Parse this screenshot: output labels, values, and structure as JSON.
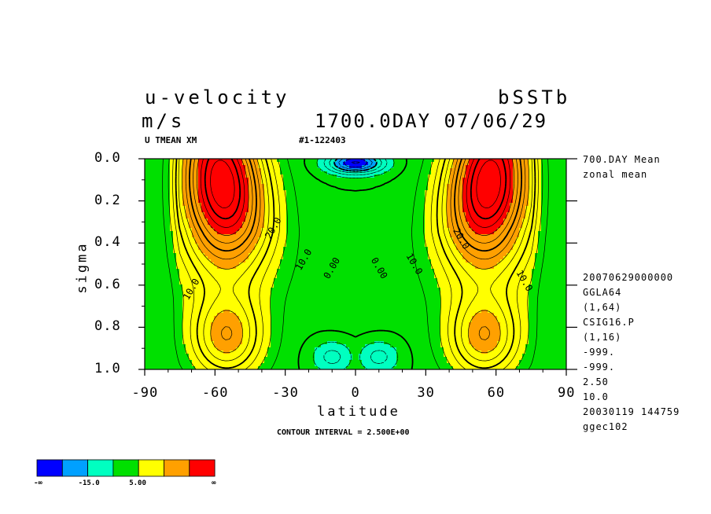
{
  "header": {
    "title": "u-velocity",
    "units": "m/s",
    "experiment": "bSSTb",
    "time": "1700.0DAY 07/06/29",
    "variable": "U TMEAN XM",
    "run_id": "#1-122403"
  },
  "side_info": {
    "lines_top": [
      "700.DAY Mean",
      "zonal mean"
    ],
    "lines_bottom": [
      "20070629000000",
      "GGLA64",
      "(1,64)",
      "CSIG16.P",
      "(1,16)",
      "-999.",
      "-999.",
      "2.50",
      "10.0",
      "20030119 144759",
      "ggec102"
    ]
  },
  "footer": {
    "contour_interval": "CONTOUR INTERVAL = 2.500E+00"
  },
  "colorbar": {
    "colors": [
      "#0000ff",
      "#00a0ff",
      "#00ffc0",
      "#00e000",
      "#ffff00",
      "#ffa000",
      "#ff0000"
    ],
    "labels": [
      "-∞",
      "-15.0",
      "5.00",
      "∞"
    ]
  },
  "chart_data": {
    "type": "contour",
    "title": "u-velocity",
    "xlabel": "latitude",
    "ylabel": "sigma",
    "x_ticks": [
      -90,
      -60,
      -30,
      0,
      30,
      60,
      90
    ],
    "x_tick_labels": [
      "-90",
      "-60",
      "-30",
      "0",
      "30",
      "60",
      "90"
    ],
    "y_ticks": [
      0.0,
      0.2,
      0.4,
      0.6,
      0.8,
      1.0
    ],
    "y_tick_labels": [
      "0.0",
      "0.2",
      "0.4",
      "0.6",
      "0.8",
      "1.0"
    ],
    "xlim": [
      -90,
      90
    ],
    "ylim": [
      0.0,
      1.0
    ],
    "contour_interval": 2.5,
    "contour_labels": [
      {
        "text": "20.0",
        "lat": -35,
        "sigma": 0.33
      },
      {
        "text": "10.0",
        "lat": -22,
        "sigma": 0.48
      },
      {
        "text": "0.00",
        "lat": -10,
        "sigma": 0.52
      },
      {
        "text": "10.0",
        "lat": -70,
        "sigma": 0.62
      },
      {
        "text": "0.00",
        "lat": 10,
        "sigma": 0.52
      },
      {
        "text": "10.0",
        "lat": 25,
        "sigma": 0.5
      },
      {
        "text": "20.0",
        "lat": 45,
        "sigma": 0.38
      },
      {
        "text": "10.0",
        "lat": 72,
        "sigma": 0.58
      }
    ],
    "jets": [
      {
        "lat": -55,
        "sigma": 0.2,
        "max_u": 35
      },
      {
        "lat": 55,
        "sigma": 0.2,
        "max_u": 35
      }
    ],
    "easterlies": [
      {
        "lat": -8,
        "sigma": 0.94,
        "min_u": -6
      },
      {
        "lat": 10,
        "sigma": 0.94,
        "min_u": -6
      },
      {
        "lat": 0,
        "sigma": 0.04,
        "min_u": -15
      }
    ]
  }
}
